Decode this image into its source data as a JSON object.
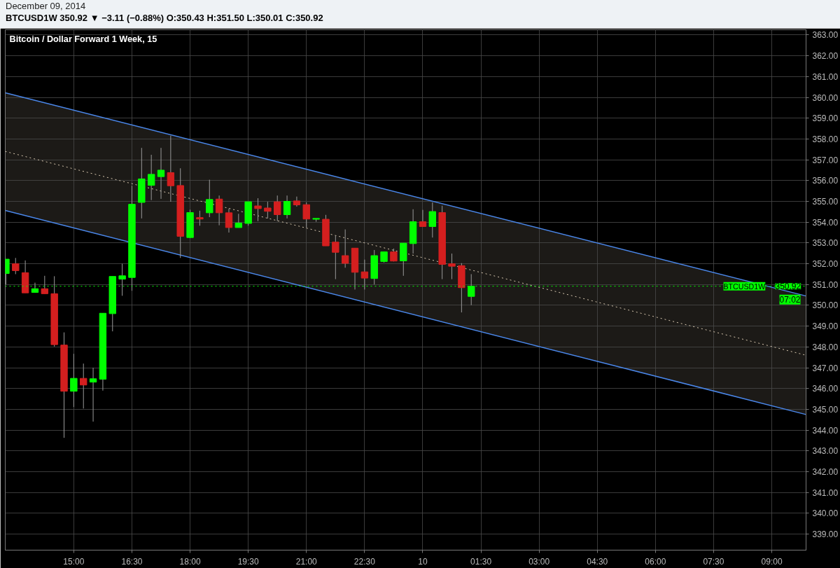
{
  "chart_data": {
    "type": "candlestick",
    "title": "Bitcoin / Dollar Forward 1 Week, 15",
    "subtitle": "BTCUSD1W 350.92 ▼ −3.11 (−0.88%) O:350.43 H:351.50 L:350.01 C:350.92",
    "annotations": [
      "December 09, 2014",
      "BTCUSD1W",
      "07:02"
    ],
    "x": [
      "2014-12-09T13:15",
      "2014-12-09T13:30",
      "2014-12-09T13:45",
      "2014-12-09T14:00",
      "2014-12-09T14:15",
      "2014-12-09T14:30",
      "2014-12-09T14:45",
      "2014-12-09T15:00",
      "2014-12-09T15:15",
      "2014-12-09T15:30",
      "2014-12-09T15:45",
      "2014-12-09T16:00",
      "2014-12-09T16:15",
      "2014-12-09T16:30",
      "2014-12-09T16:45",
      "2014-12-09T17:00",
      "2014-12-09T17:15",
      "2014-12-09T17:30",
      "2014-12-09T17:45",
      "2014-12-09T18:00",
      "2014-12-09T18:15",
      "2014-12-09T18:30",
      "2014-12-09T18:45",
      "2014-12-09T19:00",
      "2014-12-09T19:15",
      "2014-12-09T19:30",
      "2014-12-09T19:45",
      "2014-12-09T20:00",
      "2014-12-09T20:15",
      "2014-12-09T20:30",
      "2014-12-09T20:45",
      "2014-12-09T21:00",
      "2014-12-09T21:15",
      "2014-12-09T21:30",
      "2014-12-09T21:45",
      "2014-12-09T22:00",
      "2014-12-09T22:15",
      "2014-12-09T22:30",
      "2014-12-09T22:45",
      "2014-12-09T23:00",
      "2014-12-09T23:15",
      "2014-12-09T23:30",
      "2014-12-09T23:45",
      "2014-12-10T00:00",
      "2014-12-10T00:15",
      "2014-12-10T00:30",
      "2014-12-10T00:45",
      "2014-12-10T01:00",
      "2014-12-10T01:15"
    ],
    "ohlc": [
      [
        351.53,
        352.22,
        351.0,
        352.22
      ],
      [
        352.0,
        352.28,
        351.5,
        351.67
      ],
      [
        351.57,
        352.16,
        350.6,
        350.6
      ],
      [
        350.62,
        351.09,
        350.62,
        350.8
      ],
      [
        350.8,
        351.42,
        350.56,
        350.56
      ],
      [
        350.56,
        351.4,
        348.02,
        348.11
      ],
      [
        348.09,
        348.7,
        343.63,
        345.87
      ],
      [
        345.87,
        347.67,
        345.11,
        346.49
      ],
      [
        346.49,
        347.2,
        345.04,
        346.17
      ],
      [
        346.31,
        347.0,
        344.41,
        346.47
      ],
      [
        346.45,
        349.62,
        345.9,
        349.62
      ],
      [
        349.6,
        351.39,
        348.75,
        351.39
      ],
      [
        351.26,
        352.0,
        350.46,
        351.42
      ],
      [
        351.34,
        355.75,
        350.7,
        354.86
      ],
      [
        354.95,
        357.57,
        354.18,
        356.08
      ],
      [
        355.77,
        357.24,
        355.06,
        356.3
      ],
      [
        356.19,
        357.57,
        355.12,
        356.5
      ],
      [
        356.38,
        358.16,
        354.98,
        355.75
      ],
      [
        355.76,
        356.59,
        352.28,
        353.32
      ],
      [
        353.26,
        354.6,
        353.24,
        354.46
      ],
      [
        354.22,
        354.55,
        353.83,
        354.15
      ],
      [
        354.45,
        356.04,
        354.24,
        355.09
      ],
      [
        355.11,
        355.28,
        353.85,
        354.45
      ],
      [
        354.45,
        354.65,
        353.5,
        353.74
      ],
      [
        353.74,
        354.4,
        353.74,
        353.96
      ],
      [
        353.94,
        354.98,
        353.83,
        354.98
      ],
      [
        354.78,
        355.15,
        354.05,
        354.65
      ],
      [
        354.68,
        354.98,
        354.18,
        354.52
      ],
      [
        354.98,
        355.28,
        354.05,
        354.36
      ],
      [
        354.36,
        355.28,
        354.18,
        355.0
      ],
      [
        355.02,
        355.23,
        354.75,
        354.83
      ],
      [
        354.84,
        354.95,
        353.74,
        354.15
      ],
      [
        354.14,
        354.18,
        354.02,
        354.18
      ],
      [
        354.14,
        354.35,
        352.86,
        352.86
      ],
      [
        353.04,
        353.35,
        351.26,
        352.55
      ],
      [
        352.39,
        353.65,
        351.81,
        352.02
      ],
      [
        352.75,
        352.75,
        350.76,
        351.59
      ],
      [
        351.61,
        352.2,
        350.76,
        351.31
      ],
      [
        351.29,
        352.66,
        351.0,
        352.39
      ],
      [
        352.11,
        352.57,
        352.06,
        352.57
      ],
      [
        352.57,
        352.73,
        352.11,
        352.13
      ],
      [
        352.14,
        352.99,
        351.42,
        352.99
      ],
      [
        352.97,
        354.62,
        352.49,
        354.02
      ],
      [
        354.02,
        354.59,
        353.79,
        353.79
      ],
      [
        353.79,
        354.95,
        353.26,
        354.51
      ],
      [
        354.46,
        354.79,
        351.26,
        351.97
      ],
      [
        352.0,
        352.49,
        351.26,
        351.88
      ],
      [
        351.91,
        352.03,
        349.66,
        350.85
      ],
      [
        350.43,
        351.5,
        350.01,
        350.92
      ]
    ],
    "colors": [
      "#00ff00",
      "#d41f1f",
      "#d41f1f",
      "#00ff00",
      "#d41f1f",
      "#d41f1f",
      "#d41f1f",
      "#00ff00",
      "#d41f1f",
      "#00ff00",
      "#00ff00",
      "#00ff00",
      "#00ff00",
      "#00ff00",
      "#00ff00",
      "#00ff00",
      "#00ff00",
      "#d41f1f",
      "#d41f1f",
      "#00ff00",
      "#d41f1f",
      "#00ff00",
      "#d41f1f",
      "#d41f1f",
      "#00ff00",
      "#00ff00",
      "#d41f1f",
      "#d41f1f",
      "#d41f1f",
      "#00ff00",
      "#d41f1f",
      "#d41f1f",
      "#00ff00",
      "#d41f1f",
      "#d41f1f",
      "#d41f1f",
      "#d41f1f",
      "#d41f1f",
      "#00ff00",
      "#00ff00",
      "#d41f1f",
      "#00ff00",
      "#00ff00",
      "#d41f1f",
      "#00ff00",
      "#d41f1f",
      "#d41f1f",
      "#d41f1f",
      "#00ff00"
    ],
    "series": [
      {
        "type": "line",
        "color": "#4a86e8",
        "x": [
          "2014-12-09T13:14",
          "2014-12-10T09:53"
        ],
        "values": [
          360.22,
          350.45
        ]
      },
      {
        "type": "line",
        "color": "#4a86e8",
        "x": [
          "2014-12-09T13:14",
          "2014-12-10T09:53"
        ],
        "values": [
          354.56,
          344.75
        ]
      },
      {
        "type": "line",
        "color": "#d8c8b0",
        "line_style": "dotted",
        "x": [
          "2014-12-09T13:14",
          "2014-12-10T09:53"
        ],
        "values": [
          357.4,
          347.6
        ],
        "lower": [
          354.56,
          344.75
        ],
        "upper": [
          360.22,
          350.45
        ]
      }
    ],
    "ref_lines": [
      {
        "axis": "y",
        "value": 350.92,
        "label": "350.92",
        "color": "#00ff00",
        "line_style": "dotted"
      }
    ],
    "xlim": [
      "2014-12-09T13:14",
      "2014-12-10T09:53"
    ],
    "ylim": [
      338.23,
      363.25
    ],
    "xticks": [
      {
        "value": "2014-12-09T15:00",
        "label": "15:00"
      },
      {
        "value": "2014-12-09T16:30",
        "label": "16:30"
      },
      {
        "value": "2014-12-09T18:00",
        "label": "18:00"
      },
      {
        "value": "2014-12-09T19:30",
        "label": "19:30"
      },
      {
        "value": "2014-12-09T21:00",
        "label": "21:00"
      },
      {
        "value": "2014-12-09T22:30",
        "label": "22:30"
      },
      {
        "value": "2014-12-10T00:00",
        "label": "10"
      },
      {
        "value": "2014-12-10T01:30",
        "label": "01:30"
      },
      {
        "value": "2014-12-10T03:00",
        "label": "03:00"
      },
      {
        "value": "2014-12-10T04:30",
        "label": "04:30"
      },
      {
        "value": "2014-12-10T06:00",
        "label": "06:00"
      },
      {
        "value": "2014-12-10T07:30",
        "label": "07:30"
      },
      {
        "value": "2014-12-10T09:00",
        "label": "09:00"
      }
    ],
    "yticks": [
      {
        "value": 339,
        "label": "339.00"
      },
      {
        "value": 340,
        "label": "340.00"
      },
      {
        "value": 341,
        "label": "341.00"
      },
      {
        "value": 342,
        "label": "342.00"
      },
      {
        "value": 343,
        "label": "343.00"
      },
      {
        "value": 344,
        "label": "344.00"
      },
      {
        "value": 345,
        "label": "345.00"
      },
      {
        "value": 346,
        "label": "346.00"
      },
      {
        "value": 347,
        "label": "347.00"
      },
      {
        "value": 348,
        "label": "348.00"
      },
      {
        "value": 349,
        "label": "349.00"
      },
      {
        "value": 350,
        "label": "350.00"
      },
      {
        "value": 351,
        "label": "351.00"
      },
      {
        "value": 352,
        "label": "352.00"
      },
      {
        "value": 353,
        "label": "353.00"
      },
      {
        "value": 354,
        "label": "354.00"
      },
      {
        "value": 355,
        "label": "355.00"
      },
      {
        "value": 356,
        "label": "356.00"
      },
      {
        "value": 357,
        "label": "357.00"
      },
      {
        "value": 358,
        "label": "358.00"
      },
      {
        "value": 359,
        "label": "359.00"
      },
      {
        "value": 360,
        "label": "360.00"
      },
      {
        "value": 361,
        "label": "361.00"
      },
      {
        "value": 362,
        "label": "362.00"
      },
      {
        "value": 363,
        "label": "363.00"
      }
    ],
    "grid": true
  }
}
